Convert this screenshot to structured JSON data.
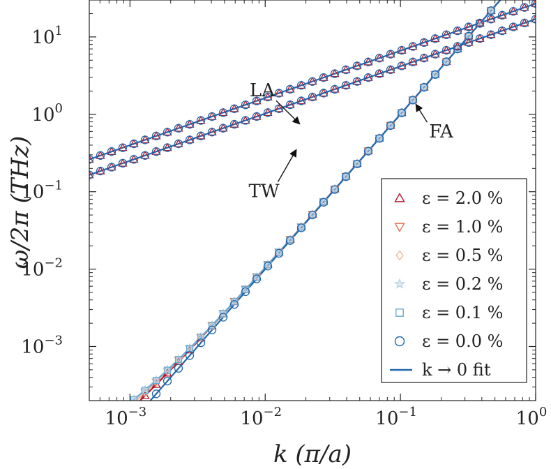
{
  "chart_data": {
    "type": "scatter",
    "xscale": "log",
    "yscale": "log",
    "xlim": [
      0.0005,
      1.0
    ],
    "ylim": [
      0.0002,
      30
    ],
    "xlabel": "k (π/a)",
    "ylabel": "ω/2π (THz)",
    "x_ticks": [
      {
        "value": 0.001,
        "mantissa": "10",
        "exp": "−3"
      },
      {
        "value": 0.01,
        "mantissa": "10",
        "exp": "−2"
      },
      {
        "value": 0.1,
        "mantissa": "10",
        "exp": "−1"
      },
      {
        "value": 1,
        "mantissa": "10",
        "exp": "0"
      }
    ],
    "y_ticks": [
      {
        "value": 0.001,
        "mantissa": "10",
        "exp": "−3"
      },
      {
        "value": 0.01,
        "mantissa": "10",
        "exp": "−2"
      },
      {
        "value": 0.1,
        "mantissa": "10",
        "exp": "−1"
      },
      {
        "value": 1,
        "mantissa": "10",
        "exp": "0"
      },
      {
        "value": 10,
        "mantissa": "10",
        "exp": "1"
      }
    ],
    "annotations": [
      {
        "text": "LA",
        "x": 0.0095,
        "y": 1.7,
        "arrow_to": [
          0.018,
          0.75
        ]
      },
      {
        "text": "TW",
        "x": 0.0098,
        "y": 0.085,
        "arrow_to": [
          0.017,
          0.35
        ]
      },
      {
        "text": "FA",
        "x": 0.2,
        "y": 0.5,
        "arrow_to": [
          0.13,
          1.35
        ]
      }
    ],
    "legend_position": "lower-right",
    "series": [
      {
        "name": "ε = 2.0 %",
        "marker": "triangle-up",
        "color": "#b2182b",
        "a": 0.05,
        "n": 1.0
      },
      {
        "name": "ε = 1.0 %",
        "marker": "triangle-down",
        "color": "#e0714e",
        "a": 0.035,
        "n": 0.9
      },
      {
        "name": "ε = 0.5 %",
        "marker": "diamond",
        "color": "#f4b79a",
        "a": 0.025,
        "n": 0.85
      },
      {
        "name": "ε = 0.2 %",
        "marker": "star",
        "color": "#bcd6e8",
        "a": 0.016,
        "n": 0.75
      },
      {
        "name": "ε = 0.1 %",
        "marker": "square",
        "color": "#6aaad2",
        "a": 0.011,
        "n": 0.7
      },
      {
        "name": "ε = 0.0 %",
        "marker": "circle",
        "color": "#2166ac",
        "a": 0.0,
        "n": 0.0
      }
    ],
    "branches": {
      "LA": {
        "coef": 27,
        "exponent": 0.61,
        "color": "#2166ac"
      },
      "TW": {
        "coef": 17,
        "exponent": 0.61,
        "color": "#2166ac"
      },
      "FA": {
        "coef": 100,
        "exponent": 2.0,
        "color": "#2166ac"
      }
    },
    "fit_label": "k → 0  fit",
    "fit_color": "#2166ac"
  }
}
